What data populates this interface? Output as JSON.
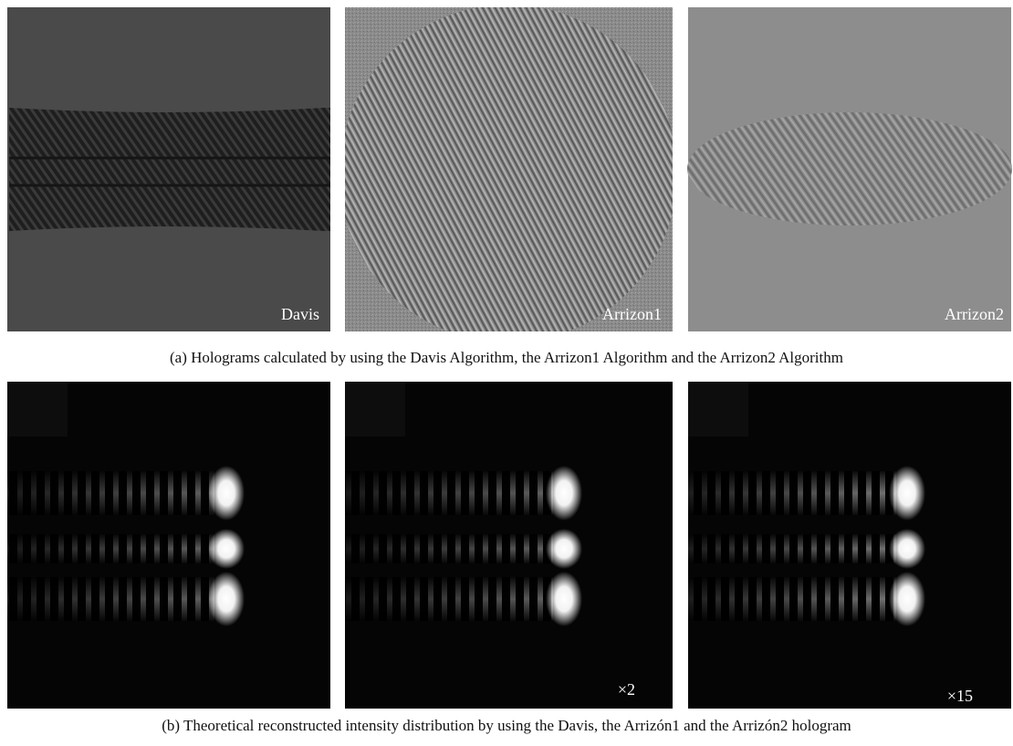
{
  "figure": {
    "row_a": {
      "labels": [
        "Davis",
        "Arrizon1",
        "Arrizon2"
      ],
      "caption": "(a) Holograms calculated by using the Davis Algorithm, the Arrizon1 Algorithm and the Arrizon2 Algorithm"
    },
    "row_b": {
      "labels": [
        null,
        "×2",
        "×15"
      ],
      "caption": "(b) Theoretical reconstructed intensity distribution by using the Davis, the Arrizón1 and the Arrizón2 hologram"
    }
  }
}
